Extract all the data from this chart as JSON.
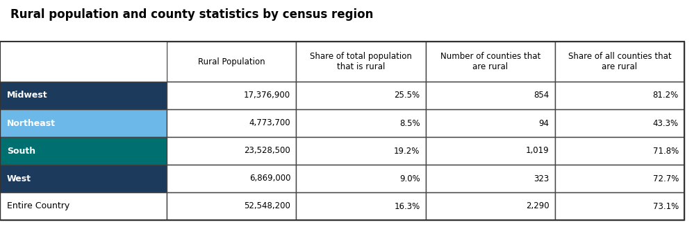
{
  "title": "Rural population and county statistics by census region",
  "col_headers": [
    "Rural Population",
    "Share of total population\nthat is rural",
    "Number of counties that\nare rural",
    "Share of all counties that\nare rural"
  ],
  "row_labels": [
    "Midwest",
    "Northeast",
    "South",
    "West",
    "Entire Country"
  ],
  "row_colors": [
    "#1b3a5c",
    "#6cb8e8",
    "#006f6f",
    "#1b3a5c",
    "#ffffff"
  ],
  "row_text_colors": [
    "#ffffff",
    "#ffffff",
    "#ffffff",
    "#ffffff",
    "#000000"
  ],
  "last_row_bold": false,
  "data": [
    [
      "17,376,900",
      "25.5%",
      "854",
      "81.2%"
    ],
    [
      "4,773,700",
      "8.5%",
      "94",
      "43.3%"
    ],
    [
      "23,528,500",
      "19.2%",
      "1,019",
      "71.8%"
    ],
    [
      "6,869,000",
      "9.0%",
      "323",
      "72.7%"
    ],
    [
      "52,548,200",
      "16.3%",
      "2,290",
      "73.1%"
    ]
  ],
  "title_fontsize": 12,
  "header_fontsize": 8.5,
  "cell_fontsize": 8.5,
  "label_fontsize": 9
}
